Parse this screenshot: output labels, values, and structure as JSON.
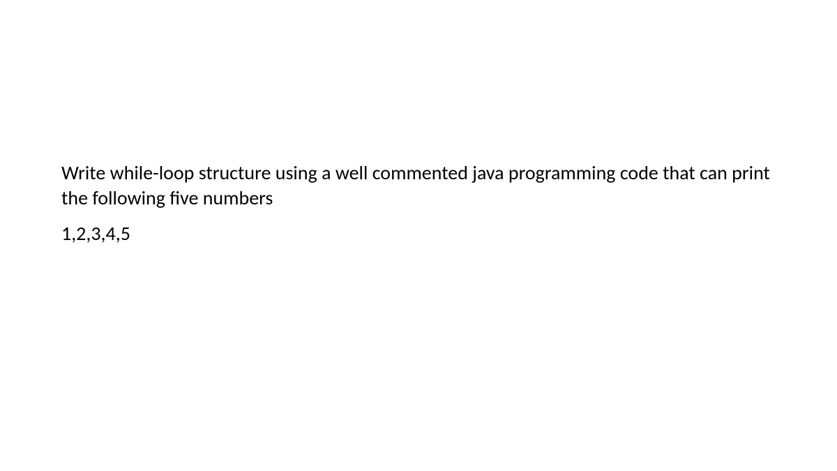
{
  "document": {
    "background_color": "#ffffff",
    "text_color": "#000000",
    "font_family": "Calibri",
    "font_size_pt": 21,
    "question": "Write while-loop structure using a well commented java programming code that can print the following five numbers",
    "numbers": "1,2,3,4,5"
  }
}
